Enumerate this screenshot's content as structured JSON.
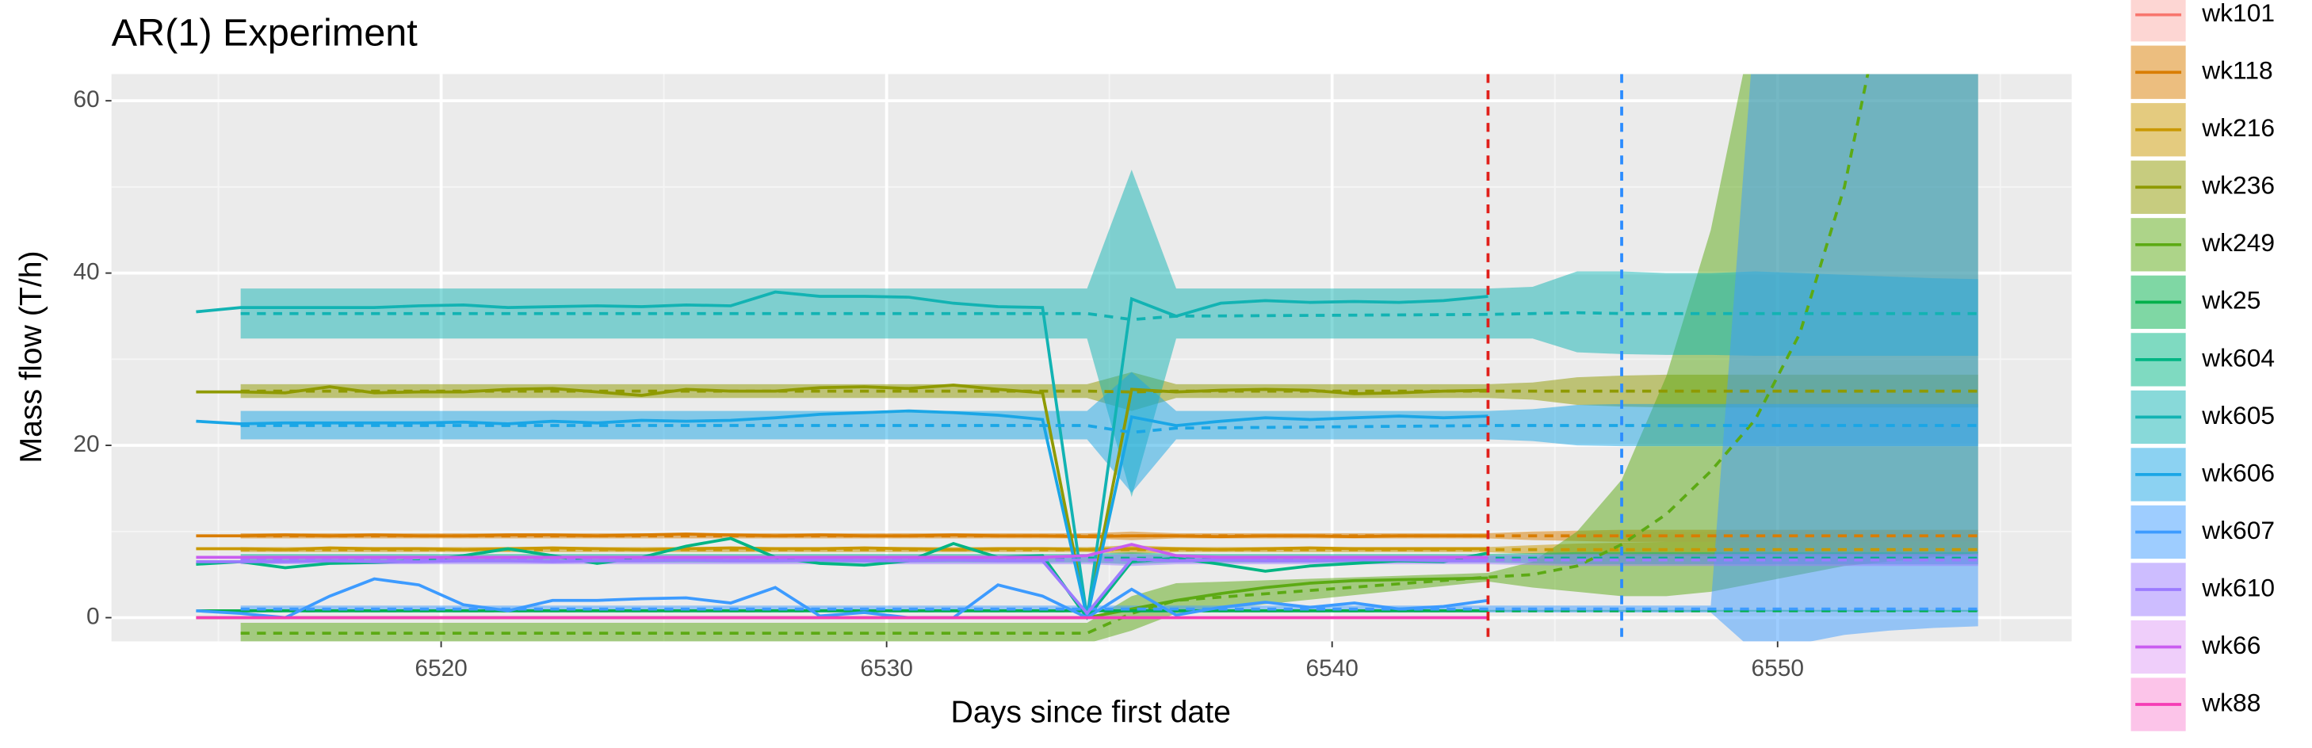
{
  "chart_data": {
    "type": "line",
    "title": "AR(1) Experiment",
    "x_label": "Days since first date",
    "y_label": "Mass flow (T/h)",
    "xlim": [
      6512.6,
      6556.6
    ],
    "ylim": [
      -2.75,
      63.1
    ],
    "xticks": [
      6520,
      6530,
      6540,
      6550
    ],
    "yticks": [
      0,
      20,
      40,
      60
    ],
    "x_minor_ticks": [
      6515,
      6525,
      6535,
      6545,
      6555
    ],
    "y_minor_ticks": [
      10,
      30,
      50
    ],
    "grid": true,
    "legend_position": "right",
    "x": [
      6514.5,
      6515.5,
      6516.5,
      6517.5,
      6518.5,
      6519.5,
      6520.5,
      6521.5,
      6522.5,
      6523.5,
      6524.5,
      6525.5,
      6526.5,
      6527.5,
      6528.5,
      6529.5,
      6530.5,
      6531.5,
      6532.5,
      6533.5,
      6534.5,
      6535.5,
      6536.5,
      6537.5,
      6538.5,
      6539.5,
      6540.5,
      6541.5,
      6542.5,
      6543.5
    ],
    "fit_x": [
      6515.5,
      6533.5,
      6534.5,
      6535.5,
      6536.5,
      6543.5,
      6544.5,
      6545.5,
      6546.5,
      6547.5,
      6548.5,
      6549.5,
      6550.5,
      6551.5,
      6552.5,
      6553.5,
      6554.5
    ],
    "vlines": [
      {
        "x": 6543.5,
        "color": "#E0201B"
      },
      {
        "x": 6546.5,
        "color": "#2B8CFF"
      }
    ],
    "series": [
      {
        "name": "wk101",
        "color": "#F8766D"
      },
      {
        "name": "wk118",
        "color": "#D97D00",
        "values": [
          9.5,
          9.5,
          9.6,
          9.5,
          9.6,
          9.5,
          9.5,
          9.6,
          9.6,
          9.5,
          9.6,
          9.7,
          9.6,
          9.5,
          9.6,
          9.5,
          9.5,
          9.6,
          9.5,
          9.5,
          9.4,
          9.5,
          9.5,
          9.4,
          9.5,
          9.5,
          9.4,
          9.5,
          9.5,
          9.5
        ],
        "fit": [
          9.5,
          9.5,
          9.5,
          9.5,
          9.5,
          9.5,
          9.5,
          9.5,
          9.5,
          9.5,
          9.5,
          9.5,
          9.5,
          9.5,
          9.5,
          9.5,
          9.5
        ],
        "lower": [
          9.2,
          9.2,
          9.2,
          9.0,
          9.2,
          9.2,
          9.0,
          8.9,
          8.8,
          8.8,
          8.8,
          8.8,
          8.8,
          8.8,
          8.8,
          8.8,
          8.8
        ],
        "upper": [
          9.8,
          9.8,
          9.8,
          10.0,
          9.8,
          9.8,
          10.0,
          10.1,
          10.2,
          10.2,
          10.2,
          10.2,
          10.2,
          10.2,
          10.2,
          10.2,
          10.2
        ]
      },
      {
        "name": "wk216",
        "color": "#C99800",
        "values": [
          8.0,
          8.0,
          7.9,
          8.1,
          8.0,
          8.0,
          7.9,
          8.0,
          8.1,
          8.0,
          7.9,
          8.0,
          8.1,
          8.0,
          8.0,
          8.1,
          8.0,
          7.9,
          8.0,
          8.0,
          7.9,
          8.0,
          8.0,
          7.9,
          8.0,
          8.1,
          8.0,
          8.0,
          8.0,
          8.0
        ],
        "fit": [
          7.9,
          7.9,
          7.9,
          7.9,
          7.9,
          7.9,
          7.9,
          7.9,
          7.9,
          7.9,
          7.9,
          7.9,
          7.9,
          7.9,
          7.9,
          7.9,
          7.9
        ],
        "lower": [
          7.6,
          7.6,
          7.6,
          7.4,
          7.6,
          7.6,
          7.4,
          7.3,
          7.2,
          7.2,
          7.2,
          7.2,
          7.2,
          7.2,
          7.2,
          7.2,
          7.2
        ],
        "upper": [
          8.2,
          8.2,
          8.2,
          8.4,
          8.2,
          8.2,
          8.4,
          8.6,
          8.7,
          8.8,
          8.8,
          8.8,
          8.8,
          8.8,
          8.8,
          8.8,
          8.8
        ]
      },
      {
        "name": "wk236",
        "color": "#8F9A00",
        "values": [
          26.2,
          26.2,
          26.1,
          26.8,
          26.1,
          26.2,
          26.2,
          26.5,
          26.6,
          26.2,
          25.8,
          26.5,
          26.3,
          26.3,
          26.7,
          26.8,
          26.6,
          27.0,
          26.5,
          26.1,
          0,
          26.5,
          26.2,
          26.4,
          26.5,
          26.4,
          26.0,
          26.1,
          26.3,
          26.4
        ],
        "fit": [
          26.3,
          26.3,
          26.3,
          26.2,
          26.3,
          26.3,
          26.3,
          26.3,
          26.3,
          26.3,
          26.3,
          26.3,
          26.3,
          26.3,
          26.3,
          26.3,
          26.3
        ],
        "lower": [
          25.5,
          25.5,
          25.5,
          24.0,
          25.5,
          25.5,
          25.3,
          24.7,
          24.5,
          24.4,
          24.4,
          24.4,
          24.4,
          24.4,
          24.4,
          24.4,
          24.4
        ],
        "upper": [
          27.1,
          27.1,
          27.1,
          28.5,
          27.1,
          27.1,
          27.3,
          27.9,
          28.1,
          28.2,
          28.2,
          28.2,
          28.2,
          28.2,
          28.2,
          28.2,
          28.2
        ]
      },
      {
        "name": "wk249",
        "color": "#5CAA14",
        "values": [
          0,
          0,
          0,
          0,
          0,
          0,
          0,
          0,
          0,
          0,
          0,
          0,
          0,
          0,
          0,
          0,
          0,
          0,
          0,
          0,
          0,
          1.0,
          2.0,
          2.8,
          3.5,
          4.0,
          4.3,
          4.4,
          4.5,
          4.6
        ],
        "fit": [
          -1.8,
          -1.8,
          -1.8,
          0.5,
          2.0,
          4.7,
          5.0,
          6.0,
          8.5,
          12,
          17,
          23,
          33,
          50,
          75,
          110,
          160
        ],
        "lower": [
          -3,
          -3,
          -3,
          -1.5,
          0.5,
          4.2,
          3.5,
          3.0,
          2.5,
          2.5,
          3.0,
          4.0,
          5.0,
          6.0,
          6.5,
          7.0,
          7.5
        ],
        "upper": [
          -0.6,
          -0.6,
          -0.6,
          2.5,
          4.0,
          5.2,
          6.5,
          10,
          16,
          28,
          45,
          70,
          110,
          160,
          230,
          300,
          400
        ]
      },
      {
        "name": "wk25",
        "color": "#00B04A",
        "values": [
          0.8,
          0.8,
          0.8,
          0.8,
          0.8,
          0.8,
          0.8,
          0.8,
          0.8,
          0.8,
          0.8,
          0.8,
          0.8,
          0.8,
          0.8,
          0.8,
          0.8,
          0.8,
          0.8,
          0.8,
          0.8,
          0.8,
          0.8,
          0.8,
          0.8,
          0.8,
          0.8,
          0.8,
          0.8,
          0.8
        ],
        "fit": [
          0.8,
          0.8,
          0.8,
          0.8,
          0.8,
          0.8,
          0.8,
          0.8,
          0.8,
          0.8,
          0.8,
          0.8,
          0.8,
          0.8,
          0.8,
          0.8,
          0.8
        ],
        "lower": [
          0.7,
          0.7,
          0.7,
          0.7,
          0.7,
          0.7,
          0.7,
          0.7,
          0.7,
          0.7,
          0.7,
          0.7,
          0.7,
          0.7,
          0.7,
          0.7,
          0.7
        ],
        "upper": [
          0.9,
          0.9,
          0.9,
          0.9,
          0.9,
          0.9,
          0.9,
          0.9,
          0.9,
          0.9,
          0.9,
          0.9,
          0.9,
          0.9,
          0.9,
          0.9,
          0.9
        ]
      },
      {
        "name": "wk604",
        "color": "#00B583",
        "values": [
          6.2,
          6.5,
          5.8,
          6.3,
          6.4,
          6.6,
          7.2,
          8.0,
          7.2,
          6.3,
          7.0,
          8.3,
          9.2,
          7.0,
          6.3,
          6.1,
          6.6,
          8.6,
          7.0,
          7.2,
          0,
          6.5,
          6.9,
          6.2,
          5.4,
          6.0,
          6.3,
          6.6,
          6.5,
          7.5
        ],
        "fit": [
          6.9,
          6.9,
          6.9,
          6.9,
          6.9,
          6.9,
          6.9,
          6.9,
          6.9,
          6.9,
          6.9,
          6.9,
          6.9,
          6.9,
          6.9,
          6.9,
          6.9
        ],
        "lower": [
          6.4,
          6.4,
          6.4,
          6.2,
          6.4,
          6.4,
          6.3,
          6.2,
          6.2,
          6.2,
          6.2,
          6.2,
          6.2,
          6.2,
          6.2,
          6.2,
          6.2
        ],
        "upper": [
          7.4,
          7.4,
          7.4,
          7.6,
          7.4,
          7.4,
          7.5,
          7.6,
          7.6,
          7.6,
          7.6,
          7.6,
          7.6,
          7.6,
          7.6,
          7.6,
          7.6
        ]
      },
      {
        "name": "wk605",
        "color": "#12B3B3",
        "values": [
          35.5,
          36,
          36,
          36,
          36,
          36.2,
          36.3,
          36,
          36.1,
          36.2,
          36.1,
          36.3,
          36.2,
          37.8,
          37.3,
          37.3,
          37.2,
          36.5,
          36.1,
          36,
          0,
          37,
          35,
          36.5,
          36.8,
          36.6,
          36.7,
          36.6,
          36.8,
          37.3
        ],
        "fit": [
          35.3,
          35.3,
          35.3,
          34.6,
          35.0,
          35.2,
          35.3,
          35.4,
          35.3,
          35.3,
          35.3,
          35.3,
          35.3,
          35.3,
          35.3,
          35.3,
          35.3
        ],
        "lower": [
          32.4,
          32.4,
          32.4,
          14,
          32.4,
          32.4,
          32.4,
          30.8,
          30.6,
          30.5,
          30.5,
          30.4,
          30.4,
          30.4,
          30.4,
          30.4,
          30.4
        ],
        "upper": [
          38.2,
          38.2,
          38.2,
          52,
          38.2,
          38.2,
          38.4,
          40.2,
          40.2,
          40,
          40,
          40.2,
          40,
          39.8,
          39.6,
          39.4,
          39.3
        ]
      },
      {
        "name": "wk606",
        "color": "#1AA6E6",
        "values": [
          22.8,
          22.5,
          22.6,
          22.6,
          22.6,
          22.6,
          22.7,
          22.5,
          22.8,
          22.6,
          22.9,
          22.8,
          22.9,
          23.2,
          23.6,
          23.8,
          24,
          23.8,
          23.5,
          23,
          0,
          23.3,
          22.3,
          22.8,
          23.2,
          23,
          23.2,
          23.4,
          23.2,
          23.4
        ],
        "fit": [
          22.3,
          22.3,
          22.3,
          21.5,
          22.0,
          22.3,
          22.3,
          22.3,
          22.3,
          22.3,
          22.3,
          22.3,
          22.3,
          22.3,
          22.3,
          22.3,
          22.3
        ],
        "lower": [
          20.7,
          20.7,
          20.7,
          14.5,
          20.7,
          20.7,
          20.5,
          20.0,
          19.9,
          19.9,
          19.9,
          19.9,
          19.9,
          19.9,
          19.9,
          19.9,
          19.9
        ],
        "upper": [
          24.0,
          24.0,
          24.0,
          28.5,
          24.0,
          24.0,
          24.2,
          24.7,
          24.8,
          24.8,
          24.8,
          24.8,
          24.8,
          24.8,
          24.8,
          24.8,
          24.8
        ]
      },
      {
        "name": "wk607",
        "color": "#3D9BFF",
        "values": [
          0.8,
          0.5,
          0,
          2.5,
          4.5,
          3.8,
          1.5,
          0.8,
          2,
          2,
          2.2,
          2.3,
          1.7,
          3.5,
          0.2,
          0.6,
          0,
          0,
          3.8,
          2.5,
          0,
          3.3,
          0.3,
          1.2,
          1.8,
          1.2,
          1.7,
          1,
          1.3,
          2
        ],
        "fit": [
          1.0,
          1.0,
          1.0,
          1.0,
          1.0,
          1.0,
          1.0,
          1.0,
          1.0,
          1.0,
          1.0,
          1.0,
          1.0,
          1.0,
          1.0,
          1.0,
          1.0
        ],
        "lower": [
          0.6,
          0.6,
          0.6,
          0.6,
          0.6,
          0.6,
          0.6,
          0.6,
          0.6,
          0.6,
          0.6,
          -4,
          -3,
          -2,
          -1.5,
          -1.2,
          -1
        ],
        "upper": [
          1.4,
          1.4,
          1.4,
          1.4,
          1.4,
          1.4,
          1.4,
          1.4,
          1.4,
          1.4,
          1.4,
          70,
          70,
          70,
          70,
          70,
          70
        ]
      },
      {
        "name": "wk610",
        "color": "#9B7BFF",
        "values": [
          6.5,
          6.5,
          6.5,
          6.6,
          6.5,
          6.5,
          6.6,
          6.6,
          6.5,
          6.6,
          6.6,
          6.7,
          6.6,
          6.6,
          6.7,
          6.6,
          6.6,
          6.7,
          6.6,
          6.6,
          0.5,
          6.8,
          6.6,
          6.7,
          6.6,
          6.6,
          6.7,
          6.7,
          6.6,
          6.6
        ],
        "fit": [
          6.7,
          6.7,
          6.7,
          6.7,
          6.7,
          6.7,
          6.7,
          6.7,
          6.7,
          6.7,
          6.7,
          6.7,
          6.7,
          6.7,
          6.7,
          6.7,
          6.7
        ],
        "lower": [
          6.2,
          6.2,
          6.2,
          6.0,
          6.2,
          6.2,
          6.1,
          6.0,
          6.0,
          6.0,
          6.0,
          6.0,
          6.0,
          6.0,
          6.0,
          6.0,
          6.0
        ],
        "upper": [
          7.2,
          7.2,
          7.2,
          7.4,
          7.2,
          7.2,
          7.3,
          7.4,
          7.4,
          7.4,
          7.4,
          7.4,
          7.4,
          7.4,
          7.4,
          7.4,
          7.4
        ]
      },
      {
        "name": "wk66",
        "color": "#C95DF0",
        "values": [
          7.0,
          7.0,
          7.0,
          7.0,
          7.0,
          7.0,
          7.0,
          7.0,
          7.0,
          7.0,
          7.0,
          7.0,
          7.0,
          7.0,
          7.0,
          7.0,
          7.0,
          7.0,
          7.0,
          7.0,
          7.2,
          8.5,
          7.2,
          7.0,
          7.0,
          7.0,
          7.0,
          7.0,
          7.0,
          7.0
        ]
      },
      {
        "name": "wk88",
        "color": "#F53CB5",
        "values": [
          0,
          0,
          0,
          0,
          0,
          0,
          0,
          0,
          0,
          0,
          0,
          0,
          0,
          0,
          0,
          0,
          0,
          0,
          0,
          0,
          0,
          0,
          0,
          0,
          0,
          0,
          0,
          0,
          0,
          0
        ]
      }
    ]
  }
}
